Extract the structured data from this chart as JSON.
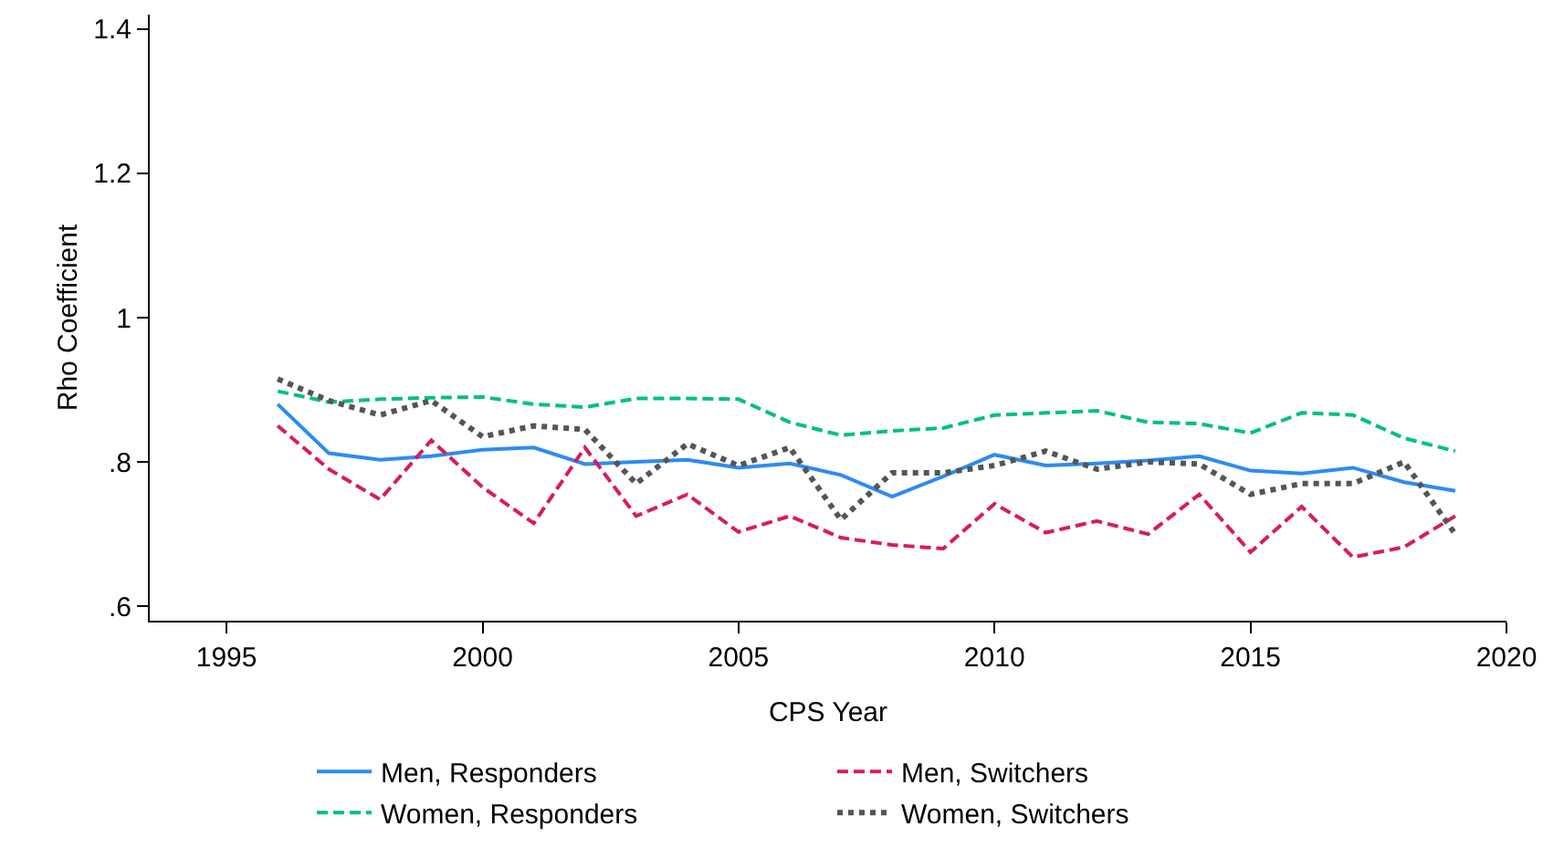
{
  "chart_data": {
    "type": "line",
    "xlabel": "CPS Year",
    "ylabel": "Rho Coefficient",
    "x": [
      1996,
      1997,
      1998,
      1999,
      2000,
      2001,
      2002,
      2003,
      2004,
      2005,
      2006,
      2007,
      2008,
      2009,
      2010,
      2011,
      2012,
      2013,
      2014,
      2015,
      2016,
      2017,
      2018,
      2019
    ],
    "series": [
      {
        "name": "Men, Responders",
        "color": "#2e8bf0",
        "line_style": "solid",
        "values": [
          0.88,
          0.812,
          0.803,
          0.808,
          0.817,
          0.82,
          0.797,
          0.8,
          0.803,
          0.792,
          0.798,
          0.782,
          0.752,
          0.78,
          0.81,
          0.795,
          0.798,
          0.802,
          0.808,
          0.788,
          0.784,
          0.792,
          0.772,
          0.76
        ]
      },
      {
        "name": "Men, Switchers",
        "color": "#d81b60",
        "line_style": "dashed",
        "values": [
          0.85,
          0.79,
          0.748,
          0.83,
          0.765,
          0.715,
          0.82,
          0.725,
          0.755,
          0.703,
          0.725,
          0.695,
          0.685,
          0.68,
          0.742,
          0.702,
          0.718,
          0.7,
          0.755,
          0.675,
          0.738,
          0.668,
          0.682,
          0.725
        ]
      },
      {
        "name": "Women, Responders",
        "color": "#00c080",
        "line_style": "dashed",
        "values": [
          0.898,
          0.883,
          0.887,
          0.889,
          0.89,
          0.88,
          0.876,
          0.888,
          0.888,
          0.887,
          0.855,
          0.837,
          0.843,
          0.847,
          0.865,
          0.868,
          0.871,
          0.855,
          0.853,
          0.84,
          0.868,
          0.865,
          0.833,
          0.815
        ]
      },
      {
        "name": "Women, Switchers",
        "color": "#555555",
        "line_style": "dotted",
        "values": [
          0.915,
          0.885,
          0.865,
          0.885,
          0.835,
          0.85,
          0.845,
          0.77,
          0.825,
          0.795,
          0.82,
          0.72,
          0.785,
          0.785,
          0.795,
          0.815,
          0.79,
          0.8,
          0.797,
          0.755,
          0.77,
          0.77,
          0.8,
          0.7
        ]
      }
    ],
    "xlim": [
      1993.5,
      2020
    ],
    "xticks": [
      1995,
      2000,
      2005,
      2010,
      2015,
      2020
    ],
    "ylim": [
      0.58,
      1.42
    ],
    "yticks": [
      {
        "value": 0.6,
        "label": ".6"
      },
      {
        "value": 0.8,
        "label": ".8"
      },
      {
        "value": 1,
        "label": "1"
      },
      {
        "value": 1.2,
        "label": "1.2"
      },
      {
        "value": 1.4,
        "label": "1.4"
      }
    ],
    "grid": false,
    "legend": "bottom",
    "marker": "none"
  }
}
